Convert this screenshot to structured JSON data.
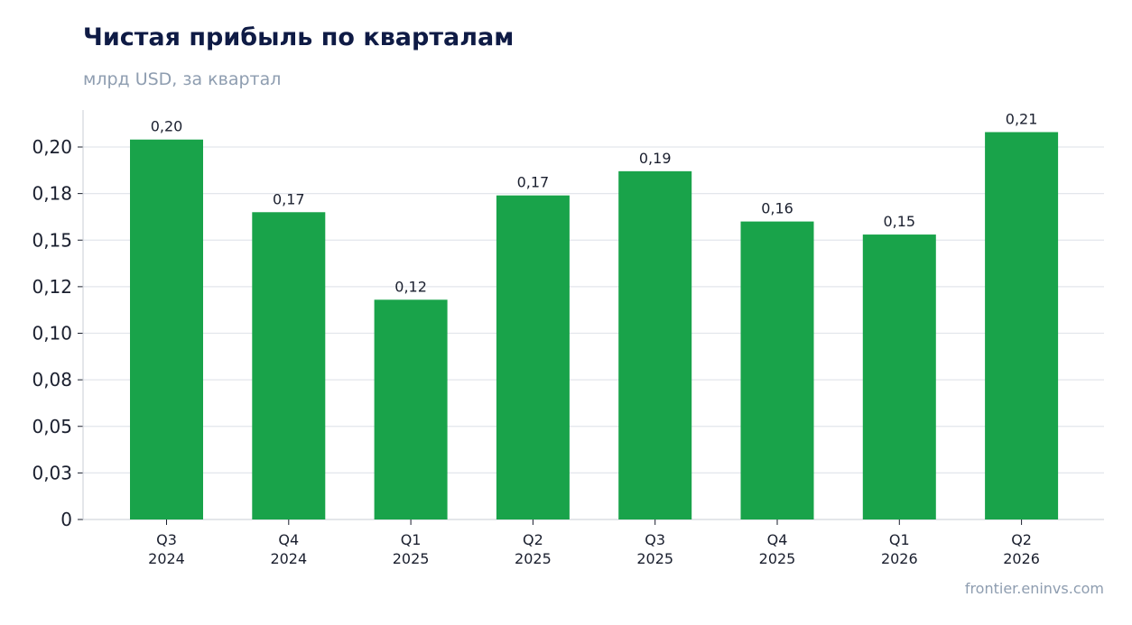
{
  "chart_data": {
    "type": "bar",
    "title": "Чистая прибыль по кварталам",
    "subtitle": "млрд USD, за квартал",
    "source": "frontier.eninvs.com",
    "categories": [
      [
        "Q3",
        "2024"
      ],
      [
        "Q4",
        "2024"
      ],
      [
        "Q1",
        "2025"
      ],
      [
        "Q2",
        "2025"
      ],
      [
        "Q3",
        "2025"
      ],
      [
        "Q4",
        "2025"
      ],
      [
        "Q1",
        "2026"
      ],
      [
        "Q2",
        "2026"
      ]
    ],
    "values": [
      0.204,
      0.165,
      0.118,
      0.174,
      0.187,
      0.16,
      0.153,
      0.208
    ],
    "data_labels": [
      "0,20",
      "0,17",
      "0,12",
      "0,17",
      "0,19",
      "0,16",
      "0,15",
      "0,21"
    ],
    "yticks": [
      0,
      0.025,
      0.05,
      0.075,
      0.1,
      0.125,
      0.15,
      0.175,
      0.2
    ],
    "ytick_labels": [
      "0",
      "0,03",
      "0,05",
      "0,08",
      "0,10",
      "0,12",
      "0,15",
      "0,18",
      "0,20"
    ],
    "ylim": [
      0,
      0.22
    ],
    "grid": true,
    "bar_color": "#19a34a",
    "grid_color": "#e3e6ec",
    "axis_color": "#c8ccd4"
  }
}
